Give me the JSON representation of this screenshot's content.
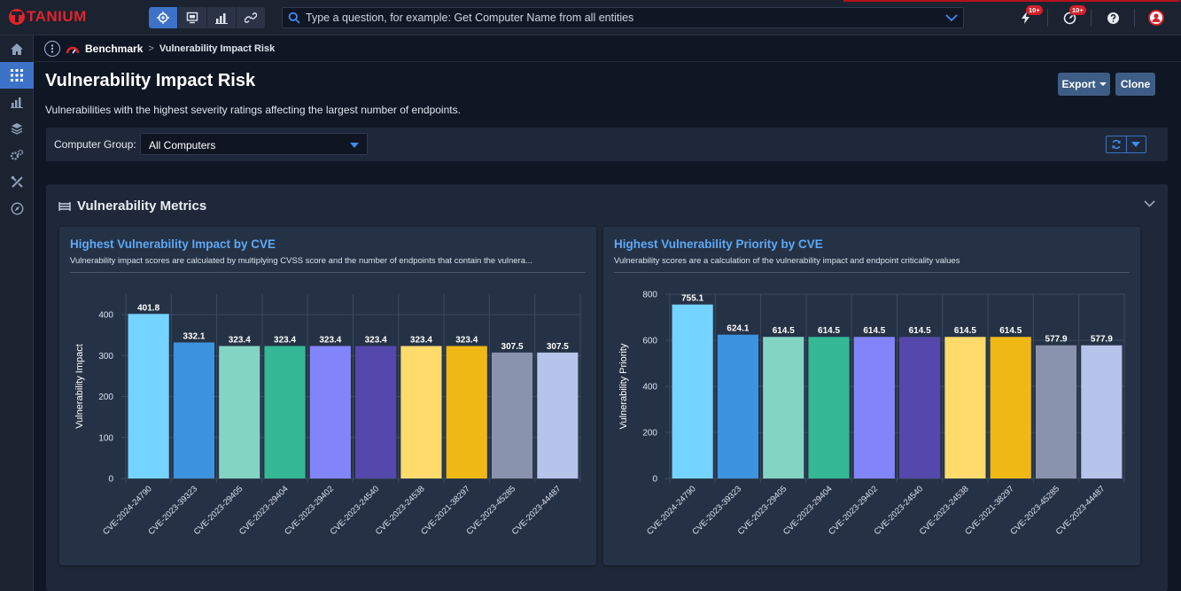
{
  "header": {
    "brand": "TANIUM",
    "search_placeholder": "Type a question, for example: Get Computer Name from all entities",
    "notifications_badge": "10+",
    "activity_badge": "10+"
  },
  "breadcrumb": {
    "home": "Benchmark",
    "separator": ">",
    "current": "Vulnerability Impact Risk"
  },
  "page": {
    "title": "Vulnerability Impact Risk",
    "description": "Vulnerabilities with the highest severity ratings affecting the largest number of endpoints.",
    "export_label": "Export",
    "clone_label": "Clone"
  },
  "filter": {
    "label": "Computer Group:",
    "value": "All Computers"
  },
  "metrics": {
    "title": "Vulnerability Metrics"
  },
  "chart_data": [
    {
      "type": "bar",
      "title": "Highest Vulnerability Impact by CVE",
      "subtitle": "Vulnerability impact scores are calculated by multiplying CVSS score and the number of endpoints that contain the vulnera...",
      "ylabel": "Vulnerability Impact",
      "xlabel": "",
      "ylim": [
        0,
        450
      ],
      "yticks": [
        0,
        100,
        200,
        300,
        400
      ],
      "categories": [
        "CVE-2024-24790",
        "CVE-2023-39323",
        "CVE-2023-29405",
        "CVE-2023-29404",
        "CVE-2023-29402",
        "CVE-2023-24540",
        "CVE-2023-24538",
        "CVE-2021-38297",
        "CVE-2023-45285",
        "CVE-2023-44487"
      ],
      "values": [
        401.8,
        332.1,
        323.4,
        323.4,
        323.4,
        323.4,
        323.4,
        323.4,
        307.5,
        307.5
      ],
      "value_labels": [
        "401.8",
        "332.1",
        "323.4",
        "323.4",
        "323.4",
        "323.4",
        "323.4",
        "323.4",
        "307.5",
        "307.5"
      ],
      "colors": [
        "#74d3ff",
        "#3c93e0",
        "#84d4c4",
        "#34b895",
        "#8285fa",
        "#5548ac",
        "#ffdb6c",
        "#f0b814",
        "#8a93ad",
        "#b6c3ea"
      ],
      "grid": true
    },
    {
      "type": "bar",
      "title": "Highest Vulnerability Priority by CVE",
      "subtitle": "Vulnerability scores are a calculation of the vulnerability impact and endpoint criticality values",
      "ylabel": "Vulnerability Priority",
      "xlabel": "",
      "ylim": [
        0,
        800
      ],
      "yticks": [
        0,
        200,
        400,
        600,
        800
      ],
      "categories": [
        "CVE-2024-24790",
        "CVE-2023-39323",
        "CVE-2023-29405",
        "CVE-2023-29404",
        "CVE-2023-29402",
        "CVE-2023-24540",
        "CVE-2023-24538",
        "CVE-2021-38297",
        "CVE-2023-45285",
        "CVE-2023-44487"
      ],
      "values": [
        755.1,
        624.1,
        614.5,
        614.5,
        614.5,
        614.5,
        614.5,
        614.5,
        577.9,
        577.9
      ],
      "value_labels": [
        "755.1",
        "624.1",
        "614.5",
        "614.5",
        "614.5",
        "614.5",
        "614.5",
        "614.5",
        "577.9",
        "577.9"
      ],
      "colors": [
        "#74d3ff",
        "#3c93e0",
        "#84d4c4",
        "#34b895",
        "#8285fa",
        "#5548ac",
        "#ffdb6c",
        "#f0b814",
        "#8a93ad",
        "#b6c3ea"
      ],
      "grid": true
    }
  ]
}
